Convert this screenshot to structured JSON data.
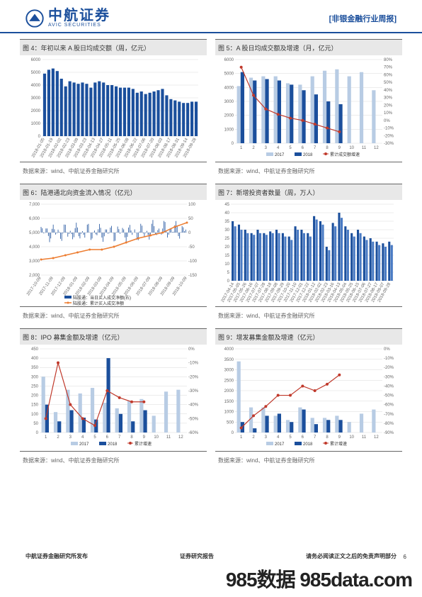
{
  "header": {
    "logo_cn": "中航证券",
    "logo_en": "AVIC SECURITIES",
    "report_title": "[非银金融行业周报]"
  },
  "charts": {
    "c4": {
      "title": "图 4：年初以来 A 股日均成交额（周，亿元）",
      "source": "数据来源：wind、中航证券金融研究所",
      "type": "bar",
      "bar_color": "#1b4f9c",
      "grid_color": "#d9d9d9",
      "ylim": [
        0,
        6000
      ],
      "ytick": [
        0,
        1000,
        2000,
        3000,
        4000,
        5000,
        6000
      ],
      "x_labels": [
        "2018-01-05",
        "2018-01-12",
        "2018-01-19",
        "2018-01-26",
        "2018-02-02",
        "2018-02-09",
        "2018-02-23",
        "2018-03-02",
        "2018-03-09",
        "2018-03-16",
        "2018-03-23",
        "2018-03-30",
        "2018-04-13",
        "2018-04-20",
        "2018-04-27",
        "2018-05-04",
        "2018-05-11",
        "2018-05-18",
        "2018-05-25",
        "2018-06-01",
        "2018-06-08",
        "2018-06-15",
        "2018-06-22",
        "2018-06-29",
        "2018-07-06",
        "2018-07-13",
        "2018-07-20",
        "2018-07-27",
        "2018-08-03",
        "2018-08-10",
        "2018-08-17",
        "2018-08-24",
        "2018-08-31",
        "2018-09-07",
        "2018-09-14",
        "2018-09-21",
        "2018-09-28"
      ],
      "values": [
        4900,
        5200,
        5300,
        5100,
        4500,
        3900,
        4300,
        4200,
        4100,
        4200,
        4100,
        3800,
        4200,
        4300,
        4200,
        4000,
        4000,
        3900,
        3800,
        3800,
        3800,
        3700,
        3400,
        3500,
        3300,
        3400,
        3500,
        3600,
        3700,
        3200,
        2900,
        2800,
        2700,
        2600,
        2600,
        2700,
        2700
      ]
    },
    "c5": {
      "title": "图 5：A 股日均成交额及增速（月，亿元）",
      "source": "数据来源：wind、中航证券金融研究所",
      "type": "bar-line",
      "grid_color": "#d9d9d9",
      "ylim": [
        0,
        6000
      ],
      "ytick": [
        0,
        1000,
        2000,
        3000,
        4000,
        5000,
        6000
      ],
      "ylim2": [
        -30,
        80
      ],
      "ytick2": [
        -30,
        -20,
        -10,
        0,
        10,
        20,
        30,
        40,
        50,
        60,
        70,
        80
      ],
      "categories": [
        "1",
        "2",
        "3",
        "4",
        "5",
        "6",
        "7",
        "8",
        "9",
        "10",
        "11",
        "12"
      ],
      "series": [
        {
          "name": "2017",
          "color": "#b8cce4",
          "values": [
            4100,
            4700,
            4800,
            4800,
            4300,
            4200,
            4800,
            5200,
            5300,
            4800,
            5100,
            3800
          ]
        },
        {
          "name": "2018",
          "color": "#1b4f9c",
          "values": [
            5100,
            4500,
            4600,
            4500,
            4200,
            3800,
            3500,
            3000,
            2800,
            null,
            null,
            null
          ]
        }
      ],
      "line": {
        "name": "累计成交额增速",
        "color": "#c0392b",
        "marker": "circle",
        "values": [
          70,
          33,
          15,
          8,
          3,
          0,
          -5,
          -10,
          -15,
          null,
          null,
          null
        ]
      }
    },
    "c6": {
      "title": "图 6：陆港通北向资金流入情况（亿元）",
      "source": "数据来源：wind、中航证券金融研究所",
      "type": "line-area",
      "grid_color": "#d9d9d9",
      "ylim": [
        2000,
        7000
      ],
      "ytick": [
        2000,
        3000,
        4000,
        5000,
        6000,
        7000
      ],
      "ylim2": [
        -150,
        100
      ],
      "ytick2": [
        -150,
        -100,
        -50,
        0,
        50,
        100
      ],
      "x_labels": [
        "2017-10-09",
        "2017-11-09",
        "2017-12-09",
        "2018-01-09",
        "2018-02-09",
        "2018-03-09",
        "2018-04-09",
        "2018-05-09",
        "2018-06-09",
        "2018-07-09",
        "2018-08-09",
        "2018-09-09",
        "2018-10-09"
      ],
      "daily_series": {
        "name": "陆股通：当日买入成交净额(右)",
        "color": "#1b4f9c"
      },
      "cum_series": {
        "name": "陆股通：累计买入成交净额",
        "color": "#ed7d31",
        "values": [
          3100,
          3200,
          3400,
          3600,
          3800,
          3800,
          4000,
          4300,
          4600,
          4800,
          5000,
          5400,
          5700
        ]
      }
    },
    "c7": {
      "title": "图 7：新增投资者数量（周，万人）",
      "source": "数据来源：wind、中航证券金融研究所",
      "type": "bar",
      "bar_color": "#1b4f9c",
      "grid_color": "#d9d9d9",
      "ylim": [
        0,
        45
      ],
      "ytick": [
        0,
        5,
        10,
        15,
        20,
        25,
        30,
        35,
        40,
        45
      ],
      "x_labels": [
        "2017-04-14",
        "2017-05-05",
        "2017-05-26",
        "2017-06-16",
        "2017-07-07",
        "2017-07-28",
        "2017-08-18",
        "2017-09-08",
        "2017-09-29",
        "2017-10-20",
        "2017-11-10",
        "2017-12-01",
        "2017-12-22",
        "2018-01-12",
        "2018-02-02",
        "2018-02-23",
        "2018-03-16",
        "2018-04-13",
        "2018-05-04",
        "2018-05-25",
        "2018-06-15",
        "2018-07-06",
        "2018-07-27",
        "2018-08-17",
        "2018-09-07",
        "2018-09-28"
      ],
      "values_a": [
        35,
        33,
        30,
        28,
        30,
        28,
        29,
        30,
        28,
        26,
        32,
        30,
        28,
        38,
        35,
        20,
        34,
        40,
        32,
        28,
        30,
        26,
        25,
        23,
        22,
        23
      ],
      "values_b": [
        32,
        30,
        28,
        27,
        28,
        27,
        28,
        28,
        26,
        24,
        30,
        28,
        26,
        36,
        33,
        18,
        32,
        37,
        30,
        26,
        28,
        24,
        23,
        21,
        20,
        21
      ]
    },
    "c8": {
      "title": "图 8：IPO 募集金额及增速（亿元）",
      "source": "数据来源：wind、中航证券金融研究所",
      "type": "bar-line",
      "grid_color": "#d9d9d9",
      "ylim": [
        0,
        450
      ],
      "ytick": [
        0,
        50,
        100,
        150,
        200,
        250,
        300,
        350,
        400,
        450
      ],
      "ylim2": [
        -60,
        0
      ],
      "ytick2": [
        -60,
        -50,
        -40,
        -30,
        -20,
        -10,
        0
      ],
      "categories": [
        "1",
        "2",
        "3",
        "4",
        "5",
        "6",
        "7",
        "8",
        "9",
        "10",
        "11",
        "12"
      ],
      "series": [
        {
          "name": "2017",
          "color": "#b8cce4",
          "values": [
            300,
            110,
            230,
            210,
            240,
            160,
            130,
            170,
            180,
            90,
            220,
            230
          ]
        },
        {
          "name": "2018",
          "color": "#1b4f9c",
          "values": [
            150,
            60,
            120,
            80,
            70,
            400,
            100,
            60,
            120,
            null,
            null,
            null
          ]
        }
      ],
      "line": {
        "name": "累计增速",
        "color": "#c0392b",
        "marker": "circle",
        "values": [
          -50,
          -10,
          -40,
          -50,
          -55,
          -30,
          -35,
          -38,
          -38,
          null,
          null,
          null
        ]
      }
    },
    "c9": {
      "title": "图 9：增发募集金额及增速（亿元）",
      "source": "数据来源：wind、中航证券金融研究所",
      "type": "bar-line",
      "grid_color": "#d9d9d9",
      "ylim": [
        0,
        4000
      ],
      "ytick": [
        0,
        500,
        1000,
        1500,
        2000,
        2500,
        3000,
        3500,
        4000
      ],
      "ylim2": [
        -90,
        0
      ],
      "ytick2": [
        -90,
        -80,
        -70,
        -60,
        -50,
        -40,
        -30,
        -20,
        -10,
        0
      ],
      "categories": [
        "1",
        "2",
        "3",
        "4",
        "5",
        "6",
        "7",
        "8",
        "9",
        "10",
        "11",
        "12"
      ],
      "series": [
        {
          "name": "2017",
          "color": "#b8cce4",
          "values": [
            3400,
            1200,
            1200,
            800,
            600,
            1200,
            700,
            700,
            800,
            500,
            900,
            1100
          ]
        },
        {
          "name": "2018",
          "color": "#1b4f9c",
          "values": [
            500,
            200,
            800,
            900,
            500,
            1100,
            400,
            600,
            600,
            null,
            null,
            null
          ]
        }
      ],
      "line": {
        "name": "累计增速",
        "color": "#c0392b",
        "marker": "circle",
        "values": [
          -85,
          -72,
          -62,
          -50,
          -50,
          -40,
          -45,
          -38,
          -28,
          null,
          null,
          null
        ]
      }
    }
  },
  "footer": {
    "left": "中航证券金融研究所发布",
    "mid": "证券研究报告",
    "right": "请务必阅读正文之后的免责声明部分",
    "page": "6"
  },
  "watermark": "985数据 985data.com"
}
